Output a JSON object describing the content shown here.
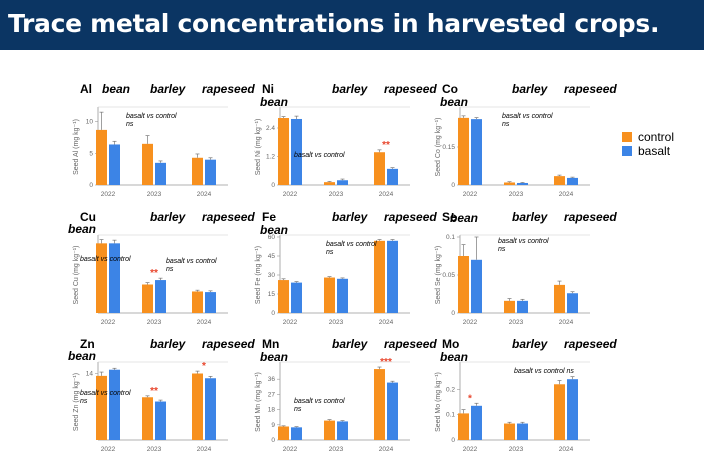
{
  "header": {
    "title": "Trace metal concentrations in harvested crops."
  },
  "colors": {
    "control": "#f7901e",
    "basalt": "#3c84e6",
    "star": "#e8452c",
    "header_bg": "#0b3563"
  },
  "legend": [
    {
      "label": "control",
      "color": "#f7901e"
    },
    {
      "label": "basalt",
      "color": "#3c84e6"
    }
  ],
  "chart_data": [
    {
      "type": "bar",
      "element": "Al",
      "crop_labels": [
        "bean",
        "barley",
        "rapeseed"
      ],
      "categories": [
        "2022",
        "2023",
        "2024"
      ],
      "note": "basalt vs control ns",
      "ylabel": "Seed Al (mg kg⁻¹)",
      "ylim": [
        0,
        12
      ],
      "yticks": [
        0,
        5,
        10
      ],
      "series": [
        {
          "name": "control",
          "values": [
            8.7,
            6.5,
            4.3
          ],
          "errors": [
            2.8,
            1.3,
            0.6
          ]
        },
        {
          "name": "basalt",
          "values": [
            6.4,
            3.5,
            4.0
          ],
          "errors": [
            0.5,
            0.3,
            0.3
          ]
        }
      ],
      "significance": [
        "",
        "",
        ""
      ]
    },
    {
      "type": "bar",
      "element": "Ni",
      "crop_labels": [
        "bean",
        "barley",
        "rapeseed"
      ],
      "categories": [
        "2022",
        "2023",
        "2024"
      ],
      "note": "basalt vs control",
      "ylabel": "Seed Ni (mg kg⁻¹)",
      "ylim": [
        0,
        3.2
      ],
      "yticks": [
        0,
        1.2,
        2.4
      ],
      "series": [
        {
          "name": "control",
          "values": [
            2.82,
            0.12,
            1.38
          ],
          "errors": [
            0.06,
            0.03,
            0.1
          ]
        },
        {
          "name": "basalt",
          "values": [
            2.78,
            0.2,
            0.68
          ],
          "errors": [
            0.12,
            0.05,
            0.05
          ]
        }
      ],
      "significance": [
        "",
        "",
        "**"
      ]
    },
    {
      "type": "bar",
      "element": "Co",
      "crop_labels": [
        "bean",
        "barley",
        "rapeseed"
      ],
      "categories": [
        "2022",
        "2023",
        "2024"
      ],
      "note": "basalt vs control ns",
      "ylabel": "Seed Co (mg kg⁻¹)",
      "ylim": [
        0,
        0.3
      ],
      "yticks": [
        0,
        0.15
      ],
      "series": [
        {
          "name": "control",
          "values": [
            0.265,
            0.01,
            0.035
          ],
          "errors": [
            0.008,
            0.003,
            0.004
          ]
        },
        {
          "name": "basalt",
          "values": [
            0.26,
            0.008,
            0.028
          ],
          "errors": [
            0.006,
            0.002,
            0.003
          ]
        }
      ],
      "significance": [
        "",
        "",
        ""
      ]
    },
    {
      "type": "bar",
      "element": "Cu",
      "crop_labels": [
        "bean",
        "barley",
        "rapeseed"
      ],
      "categories": [
        "2022",
        "2023",
        "2024"
      ],
      "note": "basalt vs control",
      "note2": "basalt vs control ns",
      "ylabel": "Seed Cu (mg kg⁻¹)",
      "ylim": [
        0,
        12
      ],
      "yticks": [],
      "series": [
        {
          "name": "control",
          "values": [
            11,
            4.5,
            3.4
          ],
          "errors": [
            0.6,
            0.3,
            0.2
          ]
        },
        {
          "name": "basalt",
          "values": [
            11,
            5.2,
            3.3
          ],
          "errors": [
            0.5,
            0.3,
            0.2
          ]
        }
      ],
      "significance": [
        "",
        "**",
        ""
      ]
    },
    {
      "type": "bar",
      "element": "Fe",
      "crop_labels": [
        "bean",
        "barley",
        "rapeseed"
      ],
      "categories": [
        "2022",
        "2023",
        "2024"
      ],
      "note": "basalt vs control ns",
      "ylabel": "Seed Fe (mg kg⁻¹)",
      "ylim": [
        0,
        60
      ],
      "yticks": [
        0,
        15,
        30,
        45,
        60
      ],
      "series": [
        {
          "name": "control",
          "values": [
            26,
            28,
            57
          ],
          "errors": [
            1.0,
            0.7,
            1.0
          ]
        },
        {
          "name": "basalt",
          "values": [
            24,
            27,
            57
          ],
          "errors": [
            0.8,
            0.7,
            1.0
          ]
        }
      ],
      "significance": [
        "",
        "",
        ""
      ]
    },
    {
      "type": "bar",
      "element": "Se",
      "crop_labels": [
        "bean",
        "barley",
        "rapeseed"
      ],
      "categories": [
        "2022",
        "2023",
        "2024"
      ],
      "note": "basalt vs control ns",
      "ylabel": "Seed Se (mg kg⁻¹)",
      "ylim": [
        0,
        0.1
      ],
      "yticks": [
        0,
        0.05,
        0.1
      ],
      "series": [
        {
          "name": "control",
          "values": [
            0.075,
            0.016,
            0.037
          ],
          "errors": [
            0.015,
            0.003,
            0.005
          ]
        },
        {
          "name": "basalt",
          "values": [
            0.07,
            0.016,
            0.026
          ],
          "errors": [
            0.03,
            0.002,
            0.002
          ]
        }
      ],
      "significance": [
        "",
        "",
        ""
      ]
    },
    {
      "type": "bar",
      "element": "Zn",
      "crop_labels": [
        "bean",
        "barley",
        "rapeseed"
      ],
      "categories": [
        "2022",
        "2023",
        "2024"
      ],
      "note": "basalt vs control ns",
      "ylabel": "Seed Zn (mg kg⁻¹)",
      "ylim": [
        0,
        16
      ],
      "yticks": [
        14
      ],
      "series": [
        {
          "name": "control",
          "values": [
            13.5,
            9.0,
            14.0
          ],
          "errors": [
            0.8,
            0.3,
            0.5
          ]
        },
        {
          "name": "basalt",
          "values": [
            14.8,
            8.1,
            13.0
          ],
          "errors": [
            0.3,
            0.3,
            0.4
          ]
        }
      ],
      "significance": [
        "",
        "**",
        "*"
      ]
    },
    {
      "type": "bar",
      "element": "Mn",
      "crop_labels": [
        "bean",
        "barley",
        "rapeseed"
      ],
      "categories": [
        "2022",
        "2023",
        "2024"
      ],
      "note": "basalt vs control ns",
      "ylabel": "Seed Mn (mg kg⁻¹)",
      "ylim": [
        0,
        45
      ],
      "yticks": [
        0,
        9,
        18,
        27,
        36
      ],
      "series": [
        {
          "name": "control",
          "values": [
            8.0,
            11.5,
            42.0
          ],
          "errors": [
            0.4,
            0.6,
            1.2
          ]
        },
        {
          "name": "basalt",
          "values": [
            7.5,
            11.0,
            34.0
          ],
          "errors": [
            0.4,
            0.5,
            0.8
          ]
        }
      ],
      "significance": [
        "",
        "",
        "***"
      ]
    },
    {
      "type": "bar",
      "element": "Mo",
      "crop_labels": [
        "bean",
        "barley",
        "rapeseed"
      ],
      "categories": [
        "2022",
        "2023",
        "2024"
      ],
      "note": "basalt vs control ns",
      "ylabel": "Seed Mo (mg kg⁻¹)",
      "ylim": [
        0,
        0.3
      ],
      "yticks": [
        0,
        0.1,
        0.2
      ],
      "series": [
        {
          "name": "control",
          "values": [
            0.105,
            0.065,
            0.22
          ],
          "errors": [
            0.015,
            0.005,
            0.015
          ]
        },
        {
          "name": "basalt",
          "values": [
            0.135,
            0.065,
            0.24
          ],
          "errors": [
            0.01,
            0.005,
            0.01
          ]
        }
      ],
      "significance": [
        "*",
        "",
        ""
      ]
    }
  ]
}
